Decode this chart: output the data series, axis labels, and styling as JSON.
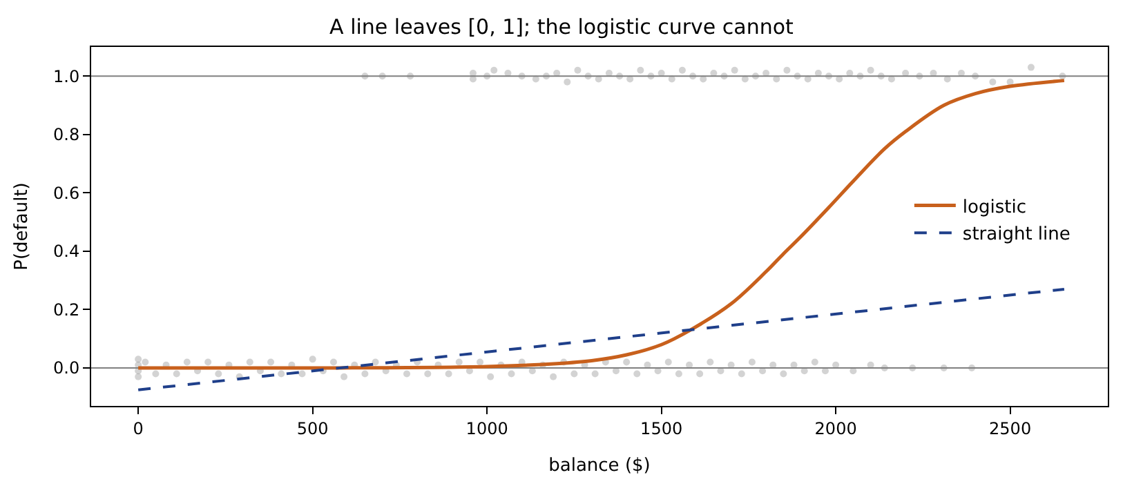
{
  "chart_data": {
    "type": "scatter",
    "title": "A line leaves [0, 1]; the logistic curve cannot",
    "xlabel": "balance ($)",
    "ylabel": "P(default)",
    "xlim": [
      -135,
      2780
    ],
    "xticks": [
      0,
      500,
      1000,
      1500,
      2000,
      2500
    ],
    "ylim": [
      -0.13,
      1.1
    ],
    "yticks": [
      {
        "value": 0,
        "label": "0.0"
      },
      {
        "value": 0.2,
        "label": "0.2"
      },
      {
        "value": 0.4,
        "label": "0.4"
      },
      {
        "value": 0.6,
        "label": "0.6"
      },
      {
        "value": 0.8,
        "label": "0.8"
      },
      {
        "value": 1,
        "label": "1.0"
      }
    ],
    "grid": false,
    "legend": "right",
    "ref_lines": [
      {
        "axis": "y",
        "value": 0,
        "color": "#808080"
      },
      {
        "axis": "y",
        "value": 1,
        "color": "#808080"
      }
    ],
    "series": [
      {
        "marker": "circle",
        "color": "#808080",
        "x": [
          0,
          0,
          0,
          0,
          20,
          50,
          80,
          110,
          140,
          170,
          200,
          230,
          260,
          290,
          320,
          350,
          380,
          410,
          440,
          470,
          500,
          530,
          560,
          590,
          620,
          650,
          680,
          710,
          740,
          770,
          800,
          830,
          860,
          890,
          920,
          950,
          980,
          1010,
          1040,
          1070,
          1100,
          1130,
          1160,
          1190,
          1220,
          1250,
          1280,
          1310,
          1340,
          1370,
          1400,
          1430,
          1460,
          1490,
          1520,
          1550,
          1580,
          1610,
          1640,
          1670,
          1700,
          1730,
          1760,
          1790,
          1820,
          1850,
          1880,
          1910,
          1940,
          1970,
          2000,
          2050,
          2100,
          2140,
          2220,
          2310,
          2390
        ],
        "values": [
          0.03,
          -0.03,
          0.01,
          -0.01,
          0.02,
          -0.02,
          0.01,
          -0.02,
          0.02,
          -0.01,
          0.02,
          -0.02,
          0.01,
          -0.03,
          0.02,
          -0.01,
          0.02,
          -0.02,
          0.01,
          -0.02,
          0.03,
          -0.01,
          0.02,
          -0.03,
          0.01,
          -0.02,
          0.02,
          -0.01,
          0.01,
          -0.02,
          0.02,
          -0.02,
          0.01,
          -0.02,
          0.02,
          -0.01,
          0.02,
          -0.03,
          0.01,
          -0.02,
          0.02,
          -0.01,
          0.01,
          -0.03,
          0.02,
          -0.02,
          0.01,
          -0.02,
          0.02,
          -0.01,
          0.02,
          -0.02,
          0.01,
          -0.01,
          0.02,
          -0.02,
          0.01,
          -0.02,
          0.02,
          -0.01,
          0.01,
          -0.02,
          0.02,
          -0.01,
          0.01,
          -0.02,
          0.01,
          -0.01,
          0.02,
          -0.01,
          0.01,
          -0.01,
          0.01,
          0.0,
          0.0,
          0.0,
          0.0
        ]
      },
      {
        "marker": "circle",
        "color": "#808080",
        "x": [
          650,
          700,
          780,
          960,
          960,
          1000,
          1020,
          1060,
          1100,
          1140,
          1170,
          1200,
          1230,
          1260,
          1290,
          1320,
          1350,
          1380,
          1410,
          1440,
          1470,
          1500,
          1530,
          1560,
          1590,
          1620,
          1650,
          1680,
          1710,
          1740,
          1770,
          1800,
          1830,
          1860,
          1890,
          1920,
          1950,
          1980,
          2010,
          2040,
          2070,
          2100,
          2130,
          2160,
          2200,
          2240,
          2280,
          2320,
          2360,
          2400,
          2450,
          2500,
          2560,
          2650
        ],
        "values": [
          1.0,
          1.0,
          1.0,
          1.01,
          0.99,
          1.0,
          1.02,
          1.01,
          1.0,
          0.99,
          1.0,
          1.01,
          0.98,
          1.02,
          1.0,
          0.99,
          1.01,
          1.0,
          0.99,
          1.02,
          1.0,
          1.01,
          0.99,
          1.02,
          1.0,
          0.99,
          1.01,
          1.0,
          1.02,
          0.99,
          1.0,
          1.01,
          0.99,
          1.02,
          1.0,
          0.99,
          1.01,
          1.0,
          0.99,
          1.01,
          1.0,
          1.02,
          1.0,
          0.99,
          1.01,
          1.0,
          1.01,
          0.99,
          1.01,
          1.0,
          0.98,
          0.98,
          1.03,
          1.0
        ]
      },
      {
        "type": "line",
        "name": "logistic",
        "color": "#c8601c",
        "line_style": "solid",
        "marker": "none",
        "x": [
          0,
          500,
          1000,
          1200,
          1300,
          1400,
          1500,
          1583,
          1700,
          1800,
          1849,
          1900,
          1980,
          2050,
          2139,
          2200,
          2310,
          2400,
          2500,
          2655
        ],
        "values": [
          0.0,
          0.0,
          0.005,
          0.015,
          0.025,
          0.045,
          0.08,
          0.13,
          0.22,
          0.33,
          0.39,
          0.45,
          0.55,
          0.64,
          0.75,
          0.81,
          0.9,
          0.94,
          0.965,
          0.985
        ]
      },
      {
        "type": "line",
        "name": "straight line",
        "color": "#1f3f8a",
        "line_style": "dashed",
        "marker": "none",
        "x": [
          0,
          2655
        ],
        "values": [
          -0.075,
          0.27
        ]
      }
    ]
  }
}
